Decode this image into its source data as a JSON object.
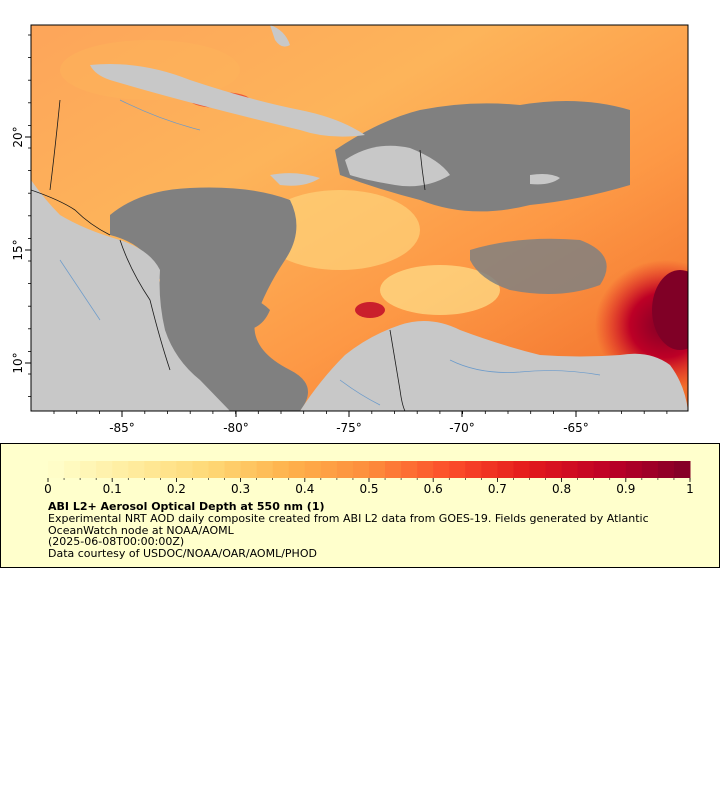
{
  "map": {
    "lat_ticks": [
      "20°",
      "15°",
      "10°"
    ],
    "lon_ticks": [
      "-85°",
      "-80°",
      "-75°",
      "-70°",
      "-65°"
    ],
    "colors": {
      "land": "#c8c8c8",
      "nodata": "#808080",
      "border": "#1a1a1a",
      "river": "#6a9acb"
    }
  },
  "legend": {
    "title": "ABI L2+ Aerosol Optical Depth at 550 nm (1)",
    "description": "Experimental NRT AOD daily composite created from ABI L2 data from GOES-19. Fields generated by Atlantic OceanWatch node at NOAA/AOML",
    "date": "(2025-06-08T00:00:00Z)",
    "credit": "Data courtesy of USDOC/NOAA/OAR/AOML/PHOD",
    "colorbar_labels": [
      "0",
      "0.1",
      "0.2",
      "0.3",
      "0.4",
      "0.5",
      "0.6",
      "0.7",
      "0.8",
      "0.9",
      "1"
    ],
    "colorbar_range": [
      0,
      1
    ],
    "colorbar_colors": [
      "#ffffcc",
      "#ffeda0",
      "#fed976",
      "#feb24c",
      "#fd8d3c",
      "#fc4e2a",
      "#e31a1c",
      "#bd0026",
      "#800026"
    ]
  }
}
